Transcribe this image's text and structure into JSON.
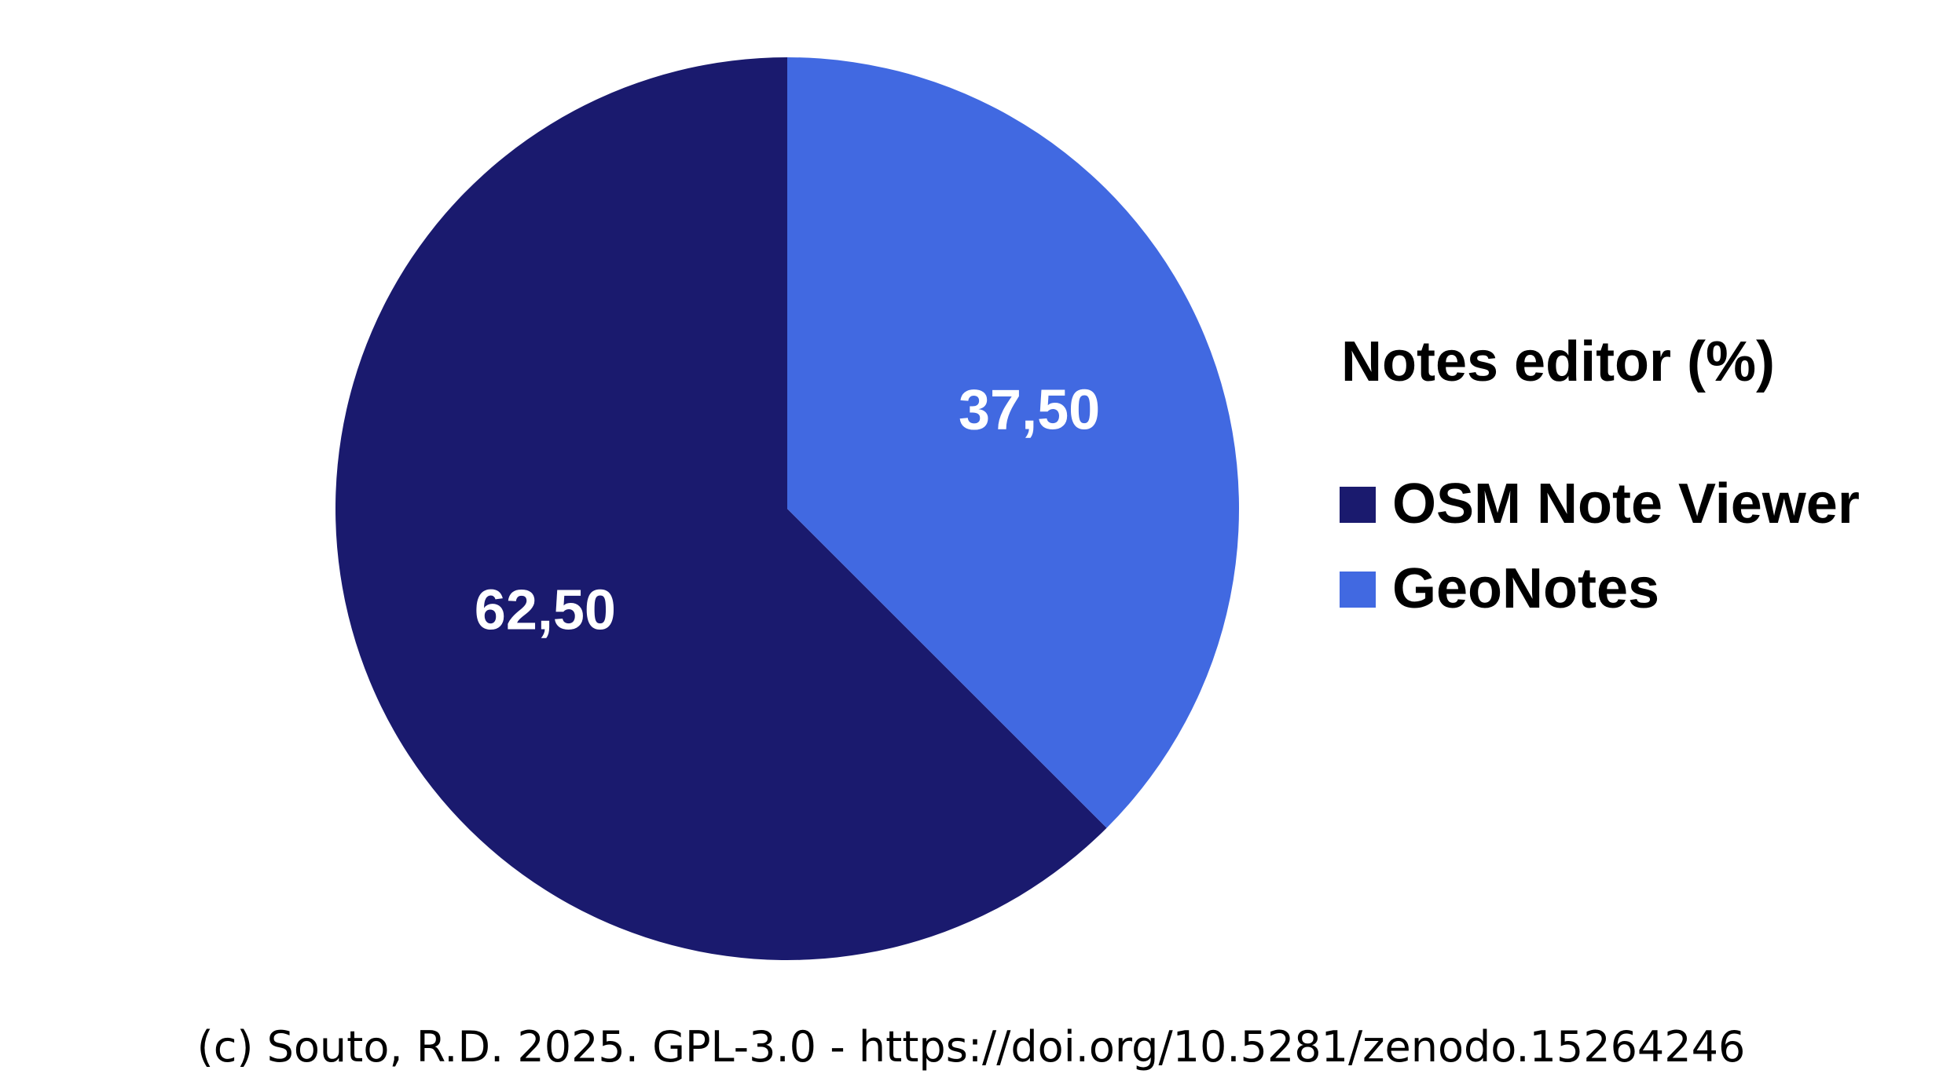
{
  "chart_data": {
    "type": "pie",
    "legend_title": "Notes editor (%)",
    "legend_position": "right",
    "categories": [
      "OSM Note Viewer",
      "GeoNotes"
    ],
    "values": [
      62.5,
      37.5
    ],
    "value_labels": [
      "62,50",
      "37,50"
    ],
    "colors": [
      "#1a1a6e",
      "#4169e1"
    ],
    "start": "top",
    "direction": "counterclockwise"
  },
  "footer": {
    "credit": "(c) Souto, R.D. 2025. GPL-3.0 - https://doi.org/10.5281/zenodo.15264246"
  }
}
